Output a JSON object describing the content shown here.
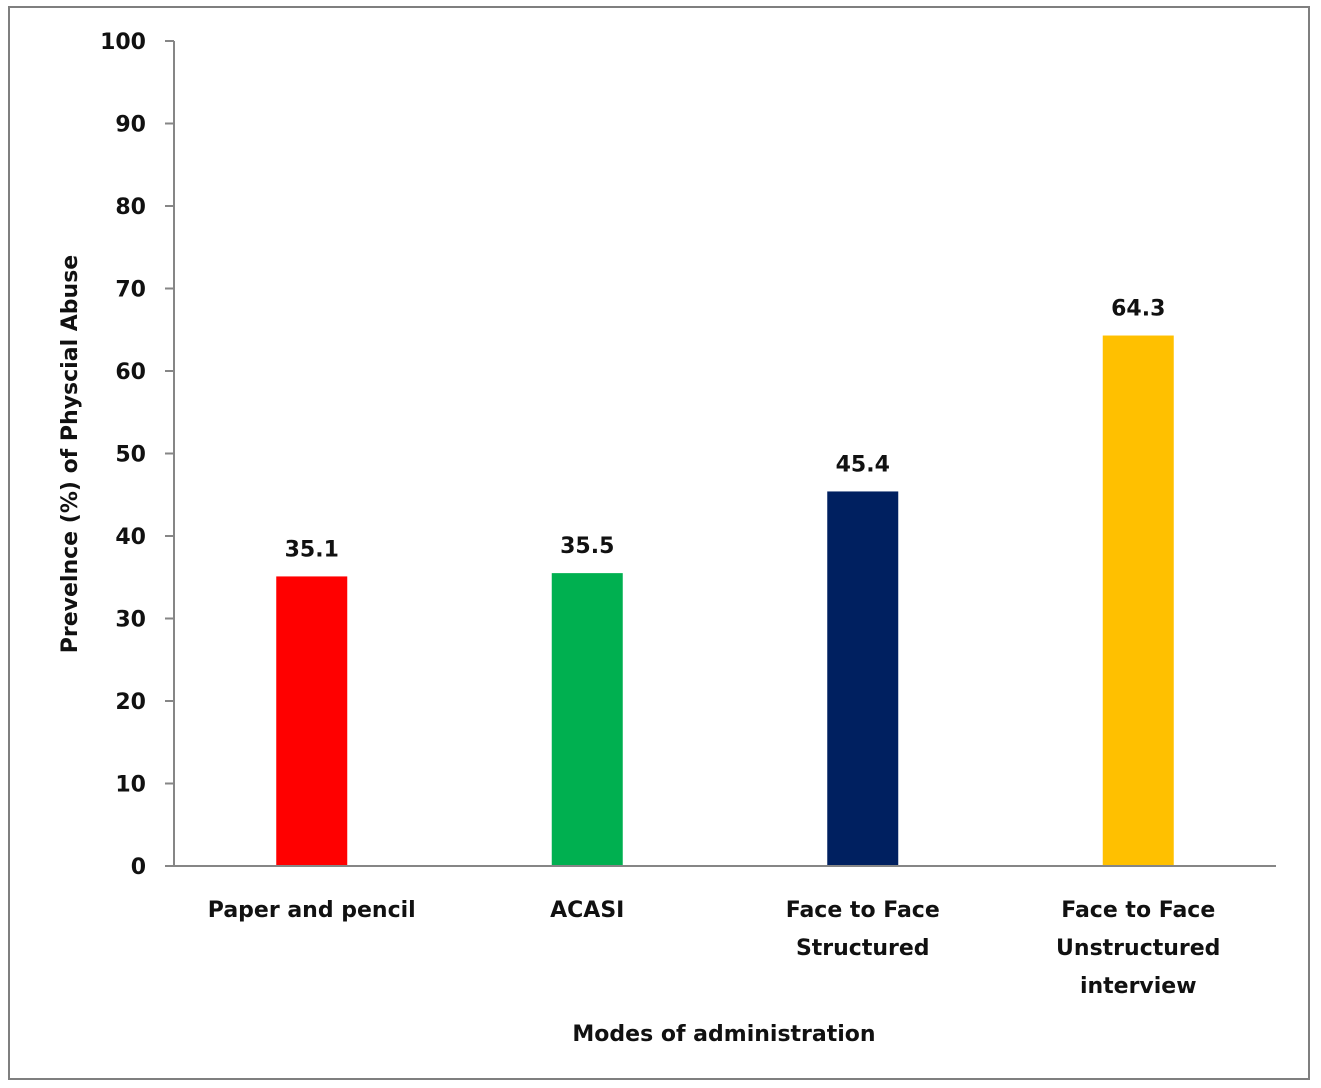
{
  "chart_data": {
    "type": "bar",
    "categories": [
      [
        "Paper and pencil"
      ],
      [
        "ACASI"
      ],
      [
        "Face to Face",
        "Structured"
      ],
      [
        "Face to Face",
        "Unstructured",
        "interview"
      ]
    ],
    "values": [
      35.1,
      35.5,
      45.4,
      64.3
    ],
    "data_labels": [
      "35.1",
      "35.5",
      "45.4",
      "64.3"
    ],
    "bar_colors": [
      "#ff0000",
      "#00b050",
      "#002060",
      "#ffc000"
    ],
    "title": "",
    "xlabel": "Modes of administration",
    "ylabel": "Prevelnce (%) of Physcial Abuse",
    "ylim": [
      0,
      100
    ],
    "yticks": [
      0,
      10,
      20,
      30,
      40,
      50,
      60,
      70,
      80,
      90,
      100
    ],
    "grid": false,
    "legend": "none"
  }
}
